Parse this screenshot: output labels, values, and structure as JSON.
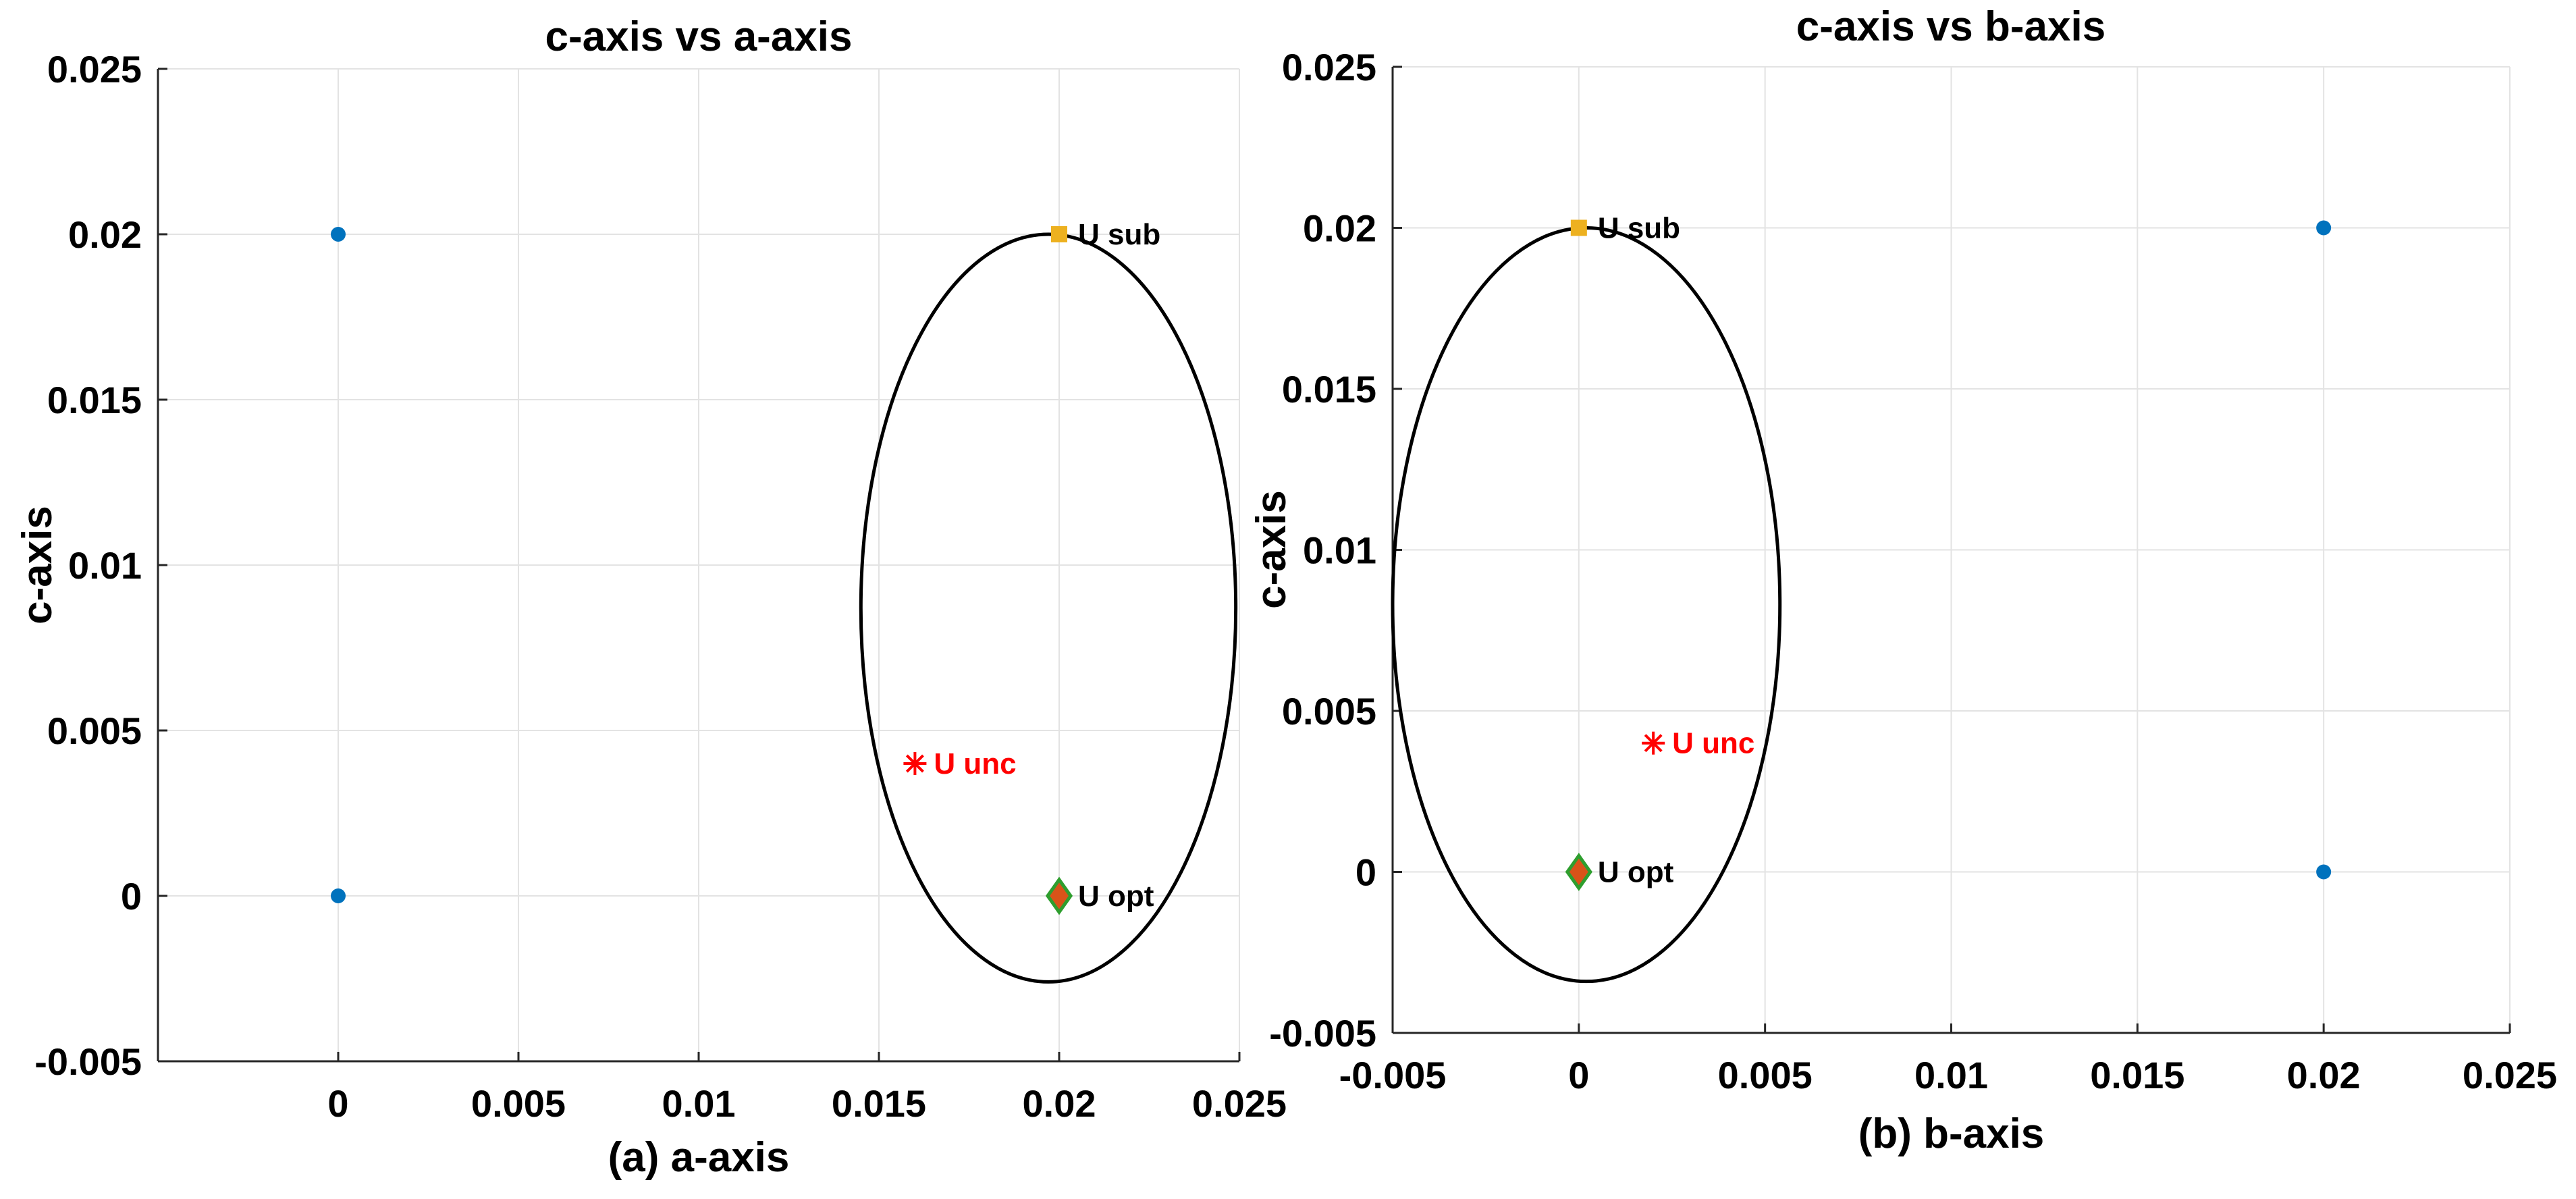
{
  "chart_data": [
    {
      "type": "scatter",
      "title": "c-axis vs a-axis",
      "xlabel": "(a) a-axis",
      "ylabel": "c-axis",
      "xlim": [
        -0.005,
        0.025
      ],
      "ylim": [
        -0.005,
        0.025
      ],
      "xticks": [
        0,
        0.005,
        0.01,
        0.015,
        0.02,
        0.025
      ],
      "xtick_labels": [
        "0",
        "0.005",
        "0.01",
        "0.015",
        "0.02",
        "0.025"
      ],
      "yticks": [
        -0.005,
        0,
        0.005,
        0.01,
        0.015,
        0.02,
        0.025
      ],
      "ytick_labels": [
        "-0.005",
        "0",
        "0.005",
        "0.01",
        "0.015",
        "0.02",
        "0.025"
      ],
      "grid": true,
      "series": [
        {
          "name": "points",
          "marker": "circle",
          "color": "#0072BD",
          "x": [
            0,
            0
          ],
          "y": [
            0.02,
            0
          ]
        },
        {
          "name": "U sub",
          "marker": "square",
          "color": "#EDB120",
          "x": [
            0.02
          ],
          "y": [
            0.02
          ],
          "label": "U sub",
          "label_color": "#000000"
        },
        {
          "name": "U unc",
          "marker": "asterisk",
          "color": "#FF0000",
          "x": [
            0.016
          ],
          "y": [
            0.004
          ],
          "label": "U unc",
          "label_color": "#FF0000"
        },
        {
          "name": "U opt",
          "marker": "diamond",
          "color": "#D95319",
          "edge_color": "#2E9E2E",
          "x": [
            0.02
          ],
          "y": [
            0
          ],
          "label": "U opt",
          "label_color": "#000000"
        }
      ],
      "ellipse": {
        "cx": 0.0197,
        "cy": 0.0087,
        "rx": 0.0052,
        "ry": 0.0113,
        "color": "#000000"
      }
    },
    {
      "type": "scatter",
      "title": "c-axis vs b-axis",
      "xlabel": "(b) b-axis",
      "ylabel": "c-axis",
      "xlim": [
        -0.005,
        0.025
      ],
      "ylim": [
        -0.005,
        0.025
      ],
      "xticks": [
        -0.005,
        0,
        0.005,
        0.01,
        0.015,
        0.02,
        0.025
      ],
      "xtick_labels": [
        "-0.005",
        "0",
        "0.005",
        "0.01",
        "0.015",
        "0.02",
        "0.025"
      ],
      "yticks": [
        -0.005,
        0,
        0.005,
        0.01,
        0.015,
        0.02,
        0.025
      ],
      "ytick_labels": [
        "-0.005",
        "0",
        "0.005",
        "0.01",
        "0.015",
        "0.02",
        "0.025"
      ],
      "grid": true,
      "series": [
        {
          "name": "points",
          "marker": "circle",
          "color": "#0072BD",
          "x": [
            0.02,
            0.02
          ],
          "y": [
            0.02,
            0
          ]
        },
        {
          "name": "U sub",
          "marker": "square",
          "color": "#EDB120",
          "x": [
            0
          ],
          "y": [
            0.02
          ],
          "label": "U sub",
          "label_color": "#000000"
        },
        {
          "name": "U unc",
          "marker": "asterisk",
          "color": "#FF0000",
          "x": [
            0.002
          ],
          "y": [
            0.004
          ],
          "label": "U unc",
          "label_color": "#FF0000"
        },
        {
          "name": "U opt",
          "marker": "diamond",
          "color": "#D95319",
          "edge_color": "#2E9E2E",
          "x": [
            0
          ],
          "y": [
            0
          ],
          "label": "U opt",
          "label_color": "#000000"
        }
      ],
      "ellipse": {
        "cx": 0.0002,
        "cy": 0.0083,
        "rx": 0.0052,
        "ry": 0.0117,
        "color": "#000000"
      }
    }
  ]
}
